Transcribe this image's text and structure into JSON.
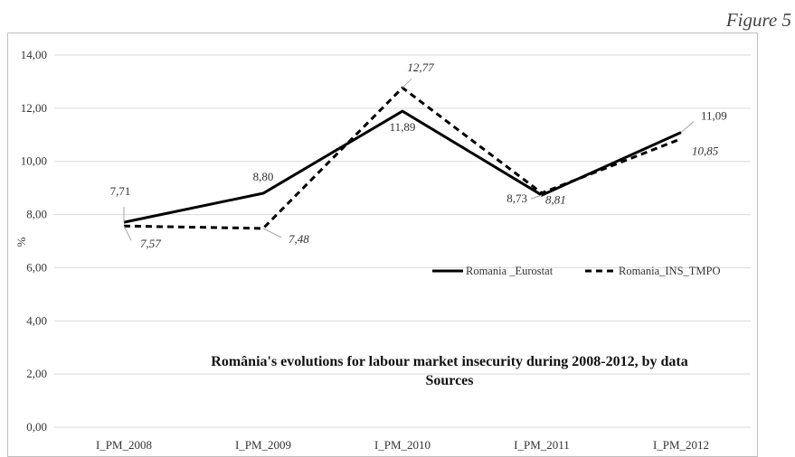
{
  "figure_label": "Figure 5",
  "chart_data": {
    "type": "line",
    "title_lines": [
      "România's evolutions for labour market insecurity during 2008-2012, by data",
      "Sources"
    ],
    "ylabel": "%",
    "xlabel": "",
    "categories": [
      "I_PM_2008",
      "I_PM_2009",
      "I_PM_2010",
      "I_PM_2011",
      "I_PM_2012"
    ],
    "ylim": [
      0,
      14
    ],
    "yticks": [
      "0,00",
      "2,00",
      "4,00",
      "6,00",
      "8,00",
      "10,00",
      "12,00",
      "14,00"
    ],
    "grid": "horizontal",
    "legend_position": "right-middle",
    "series": [
      {
        "name": "Romania _Eurostat",
        "style": "solid",
        "color": "#000000",
        "values": [
          7.71,
          8.8,
          11.89,
          8.73,
          11.09
        ],
        "labels": [
          "7,71",
          "8,80",
          "11,89",
          "8,73",
          "11,09"
        ]
      },
      {
        "name": "Romania_INS_TMPO",
        "style": "dashed",
        "color": "#000000",
        "values": [
          7.57,
          7.48,
          12.77,
          8.81,
          10.85
        ],
        "labels": [
          "7,57",
          "7,48",
          "12,77",
          "8,81",
          "10,85"
        ]
      }
    ]
  }
}
